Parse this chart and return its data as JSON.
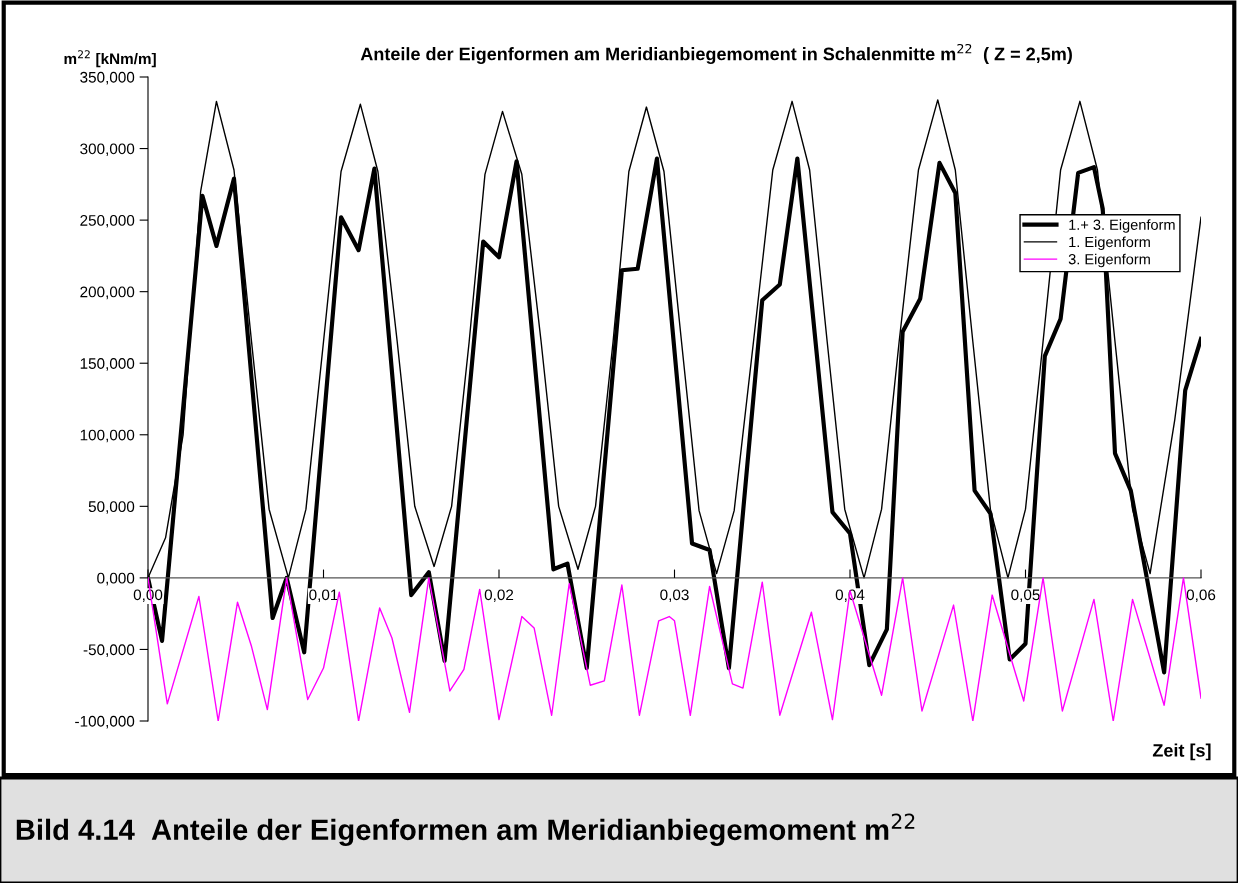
{
  "chart_data": {
    "type": "line",
    "title": "Anteile der Eigenformen am Meridianbiegemoment in Schalenmitte m$^{22}$  ( Z = 2,5m)",
    "xlabel": "Zeit [s]",
    "ylabel": "m$^{22}$ [kNm/m]",
    "annotations": [
      "Bild 4.14  Anteile der Eigenformen am Meridianbiegemoment m$^{22}$"
    ],
    "xlim": [
      0,
      0.06
    ],
    "ylim": [
      -100,
      350
    ],
    "xticks": [
      {
        "value": 0,
        "label": "0,00"
      },
      {
        "value": 0.01,
        "label": "0,01"
      },
      {
        "value": 0.02,
        "label": "0,02"
      },
      {
        "value": 0.03,
        "label": "0,03"
      },
      {
        "value": 0.04,
        "label": "0,04"
      },
      {
        "value": 0.05,
        "label": "0,05"
      },
      {
        "value": 0.06,
        "label": "0,06"
      }
    ],
    "yticks": [
      {
        "value": -100,
        "label": "-100,000"
      },
      {
        "value": -50,
        "label": "-50,000"
      },
      {
        "value": 0,
        "label": "0,000"
      },
      {
        "value": 50,
        "label": "50,000"
      },
      {
        "value": 100,
        "label": "100,000"
      },
      {
        "value": 150,
        "label": "150,000"
      },
      {
        "value": 200,
        "label": "200,000"
      },
      {
        "value": 250,
        "label": "250,000"
      },
      {
        "value": 300,
        "label": "300,000"
      },
      {
        "value": 350,
        "label": "350,000"
      }
    ],
    "grid": false,
    "legend": "right",
    "marker": "none",
    "line_style": "solid",
    "series": [
      {
        "name": "1.+ 3. Eigenform",
        "color": "#000000",
        "x": [
          0,
          0.0008,
          0.0031,
          0.0039,
          0.0049,
          0.0071,
          0.0079,
          0.0089,
          0.011,
          0.012,
          0.0129,
          0.015,
          0.016,
          0.0169,
          0.0191,
          0.02,
          0.021,
          0.0231,
          0.0239,
          0.025,
          0.027,
          0.0279,
          0.029,
          0.031,
          0.032,
          0.0331,
          0.035,
          0.036,
          0.037,
          0.039,
          0.04,
          0.0411,
          0.0421,
          0.043,
          0.044,
          0.0451,
          0.046,
          0.0471,
          0.048,
          0.0491,
          0.05,
          0.0511,
          0.052,
          0.053,
          0.0539,
          0.0544,
          0.0551,
          0.056,
          0.0579,
          0.0591,
          0.06
        ],
        "values": [
          0,
          -44,
          267,
          232,
          279,
          -28,
          0,
          -52,
          252,
          229,
          286,
          -12,
          4,
          -58,
          235,
          224,
          291,
          6,
          10,
          -63,
          215,
          216,
          293,
          24,
          19.5,
          -63,
          194,
          205,
          293,
          46,
          31,
          -61,
          -36,
          172,
          195,
          290,
          269,
          61,
          45,
          -57,
          -46,
          155,
          181,
          283,
          287,
          258,
          87,
          61,
          -66,
          131,
          167
        ]
      },
      {
        "name": "1. Eigenform",
        "color": "#000000",
        "x": [
          0,
          0.001,
          0.002,
          0.003,
          0.0039,
          0.0049,
          0.0059,
          0.0069,
          0.008,
          0.009,
          0.01,
          0.011,
          0.0121,
          0.0131,
          0.0142,
          0.0152,
          0.0163,
          0.0173,
          0.0183,
          0.0192,
          0.0202,
          0.0213,
          0.0224,
          0.0234,
          0.0245,
          0.0255,
          0.0265,
          0.0274,
          0.0284,
          0.0294,
          0.0304,
          0.0314,
          0.0324,
          0.0334,
          0.0345,
          0.0356,
          0.0367,
          0.0377,
          0.0387,
          0.0397,
          0.0408,
          0.0418,
          0.0428,
          0.0439,
          0.045,
          0.046,
          0.047,
          0.048,
          0.049,
          0.05,
          0.051,
          0.052,
          0.0531,
          0.0541,
          0.0551,
          0.0561,
          0.0571,
          0.0585,
          0.06
        ],
        "values": [
          0,
          28,
          100,
          270,
          333,
          285,
          165,
          48,
          0,
          48,
          165,
          284,
          331,
          284,
          165,
          50,
          8,
          50,
          165,
          282,
          326,
          282,
          165,
          50,
          6,
          50,
          165,
          284,
          329,
          284,
          165,
          47,
          3,
          47,
          165,
          285,
          333,
          285,
          165,
          48,
          0,
          48,
          165,
          285,
          334,
          285,
          165,
          48,
          0,
          48,
          165,
          285,
          333,
          285,
          165,
          48,
          3,
          110,
          252
        ]
      },
      {
        "name": "3. Eigenform",
        "color": "#ff00ff",
        "x": [
          0,
          0.0011,
          0.0029,
          0.004,
          0.0051,
          0.0059,
          0.0068,
          0.0079,
          0.0091,
          0.01,
          0.0109,
          0.012,
          0.0132,
          0.0139,
          0.0149,
          0.016,
          0.0172,
          0.018,
          0.0189,
          0.02,
          0.0213,
          0.022,
          0.023,
          0.024,
          0.0252,
          0.026,
          0.027,
          0.028,
          0.0291,
          0.0297,
          0.03,
          0.0309,
          0.032,
          0.0333,
          0.0339,
          0.035,
          0.036,
          0.0378,
          0.039,
          0.04,
          0.0418,
          0.043,
          0.0441,
          0.0459,
          0.047,
          0.0481,
          0.0499,
          0.051,
          0.0521,
          0.0539,
          0.055,
          0.0561,
          0.0579,
          0.059,
          0.06
        ],
        "values": [
          0,
          -88,
          -13,
          -100,
          -17,
          -48,
          -92,
          0,
          -85,
          -63,
          -10,
          -100,
          -21,
          -42,
          -94,
          0,
          -79,
          -64,
          -8,
          -99,
          -27,
          -35,
          -96,
          -4,
          -75,
          -72,
          -5,
          -96,
          -30,
          -27,
          -30,
          -96,
          -6,
          -74,
          -77,
          -3,
          -96,
          -24,
          -99,
          -9,
          -82,
          0,
          -93,
          -19,
          -100,
          -12,
          -86,
          0,
          -93,
          -15,
          -100,
          -15,
          -89,
          0,
          -84
        ]
      }
    ]
  }
}
